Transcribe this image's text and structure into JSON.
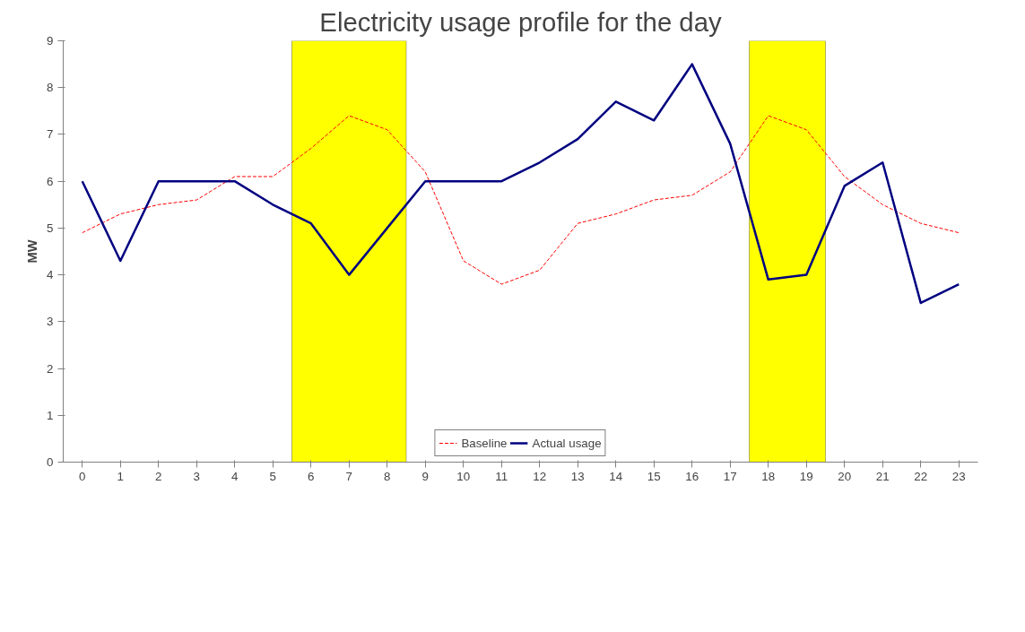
{
  "chart_data": {
    "type": "line",
    "title": "Electricity usage profile for the day",
    "ylabel": "MW",
    "x": [
      0,
      1,
      2,
      3,
      4,
      5,
      6,
      7,
      8,
      9,
      10,
      11,
      12,
      13,
      14,
      15,
      16,
      17,
      18,
      19,
      20,
      21,
      22,
      23
    ],
    "xlim": [
      -0.5,
      23.5
    ],
    "xticks": [
      0,
      1,
      2,
      3,
      4,
      5,
      6,
      7,
      8,
      9,
      10,
      11,
      12,
      13,
      14,
      15,
      16,
      17,
      18,
      19,
      20,
      21,
      22,
      23
    ],
    "ylim": [
      0,
      9
    ],
    "yticks": [
      0,
      1,
      2,
      3,
      4,
      5,
      6,
      7,
      8,
      9
    ],
    "series": [
      {
        "name": "Baseline",
        "color": "#ff0000",
        "line_style": "dashed",
        "values": [
          4.9,
          5.3,
          5.5,
          5.6,
          6.1,
          6.1,
          6.7,
          7.4,
          7.1,
          6.2,
          4.3,
          3.8,
          4.1,
          5.1,
          5.3,
          5.6,
          5.7,
          6.2,
          7.4,
          7.1,
          6.1,
          5.5,
          5.1,
          4.9
        ]
      },
      {
        "name": "Actual usage",
        "color": "#000080",
        "line_style": "solid",
        "values": [
          6.0,
          4.3,
          6.0,
          6.0,
          6.0,
          5.5,
          5.1,
          4.0,
          5.0,
          6.0,
          6.0,
          6.0,
          6.4,
          6.9,
          7.7,
          7.3,
          8.5,
          6.8,
          3.9,
          4.0,
          5.9,
          6.4,
          3.4,
          3.8
        ]
      }
    ],
    "bands": [
      {
        "axis": "x",
        "from": 5.5,
        "to": 8.5,
        "color": "#ffff00"
      },
      {
        "axis": "x",
        "from": 17.5,
        "to": 19.5,
        "color": "#ffff00"
      }
    ],
    "grid": false,
    "legend": "bottom",
    "marker": "none"
  }
}
